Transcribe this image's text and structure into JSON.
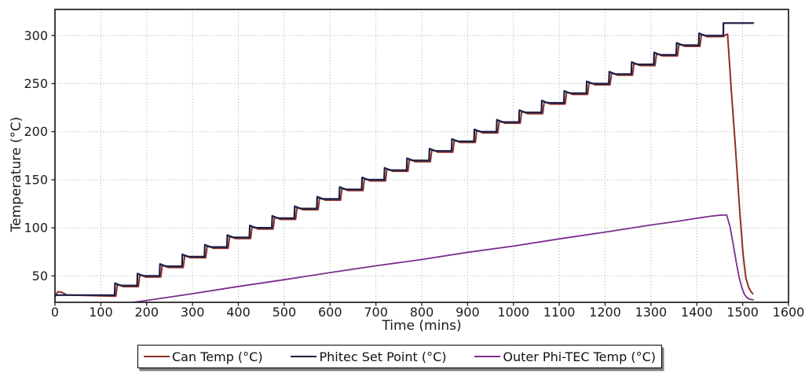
{
  "chart_data": {
    "type": "line",
    "title": "",
    "xlabel": "Time (mins)",
    "ylabel": "Temperature (°C)",
    "xlim": [
      0,
      1600
    ],
    "ylim": [
      22.5,
      327.2
    ],
    "xticks": [
      0,
      100,
      200,
      300,
      400,
      500,
      600,
      700,
      800,
      900,
      1000,
      1100,
      1200,
      1300,
      1400,
      1500,
      1600
    ],
    "yticks": [
      50,
      100,
      150,
      200,
      250,
      300
    ],
    "grid": "dotted",
    "grid_color": "#b3b3b3",
    "axis_color": "#1c1c1c",
    "text_color": "#1a1a1a",
    "background": "#ffffff",
    "legend_position": "bottom",
    "series": [
      {
        "name": "Can Temp (°C)",
        "color": "#8b3127",
        "role": "measured",
        "start_points": [
          [
            0,
            28
          ],
          [
            6,
            33.5
          ],
          [
            14,
            33
          ],
          [
            26,
            30.2
          ]
        ],
        "quench_points": [
          [
            1458,
            299
          ],
          [
            1464,
            301
          ],
          [
            1467,
            301.5
          ],
          [
            1475,
            245
          ],
          [
            1484,
            185
          ],
          [
            1494,
            115
          ],
          [
            1501,
            72
          ],
          [
            1507,
            48
          ],
          [
            1513,
            38
          ],
          [
            1519,
            33
          ],
          [
            1522,
            31.5
          ]
        ]
      },
      {
        "name": "Phitec Set Point (°C)",
        "color": "#1d1d47",
        "role": "setpoint",
        "initial_temp": 30,
        "step_height_c": 10,
        "step_interval_mins": 49,
        "steps": [
          {
            "t": 130,
            "T": 40
          },
          {
            "t": 179,
            "T": 50
          },
          {
            "t": 228,
            "T": 60
          },
          {
            "t": 277,
            "T": 70
          },
          {
            "t": 326,
            "T": 80
          },
          {
            "t": 375,
            "T": 90
          },
          {
            "t": 424,
            "T": 100
          },
          {
            "t": 473,
            "T": 110
          },
          {
            "t": 522,
            "T": 120
          },
          {
            "t": 571,
            "T": 130
          },
          {
            "t": 620,
            "T": 140
          },
          {
            "t": 669,
            "T": 150
          },
          {
            "t": 718,
            "T": 160
          },
          {
            "t": 767,
            "T": 170
          },
          {
            "t": 816,
            "T": 180
          },
          {
            "t": 865,
            "T": 190
          },
          {
            "t": 914,
            "T": 200
          },
          {
            "t": 963,
            "T": 210
          },
          {
            "t": 1012,
            "T": 220
          },
          {
            "t": 1061,
            "T": 230
          },
          {
            "t": 1110,
            "T": 240
          },
          {
            "t": 1159,
            "T": 250
          },
          {
            "t": 1208,
            "T": 260
          },
          {
            "t": 1257,
            "T": 270
          },
          {
            "t": 1306,
            "T": 280
          },
          {
            "t": 1355,
            "T": 290
          },
          {
            "t": 1404,
            "T": 300
          }
        ],
        "final_jump": {
          "t": 1458,
          "T": 313
        },
        "end_t": 1523
      },
      {
        "name": "Outer Phi-TEC Temp (°C)",
        "color": "#7c2f8e",
        "role": "outer",
        "points": [
          [
            148,
            21
          ],
          [
            200,
            24.5
          ],
          [
            300,
            31.5
          ],
          [
            400,
            39
          ],
          [
            500,
            46
          ],
          [
            600,
            53.5
          ],
          [
            700,
            60.5
          ],
          [
            800,
            67
          ],
          [
            900,
            74.5
          ],
          [
            1000,
            81
          ],
          [
            1100,
            88.5
          ],
          [
            1200,
            95.5
          ],
          [
            1300,
            103
          ],
          [
            1360,
            107
          ],
          [
            1400,
            110
          ],
          [
            1430,
            112
          ],
          [
            1448,
            113
          ],
          [
            1465,
            113.5
          ],
          [
            1472,
            102
          ],
          [
            1479,
            84
          ],
          [
            1486,
            64
          ],
          [
            1492,
            49
          ],
          [
            1498,
            38
          ],
          [
            1504,
            30.5
          ],
          [
            1510,
            27
          ],
          [
            1517,
            25.5
          ],
          [
            1523,
            25
          ]
        ]
      }
    ]
  }
}
